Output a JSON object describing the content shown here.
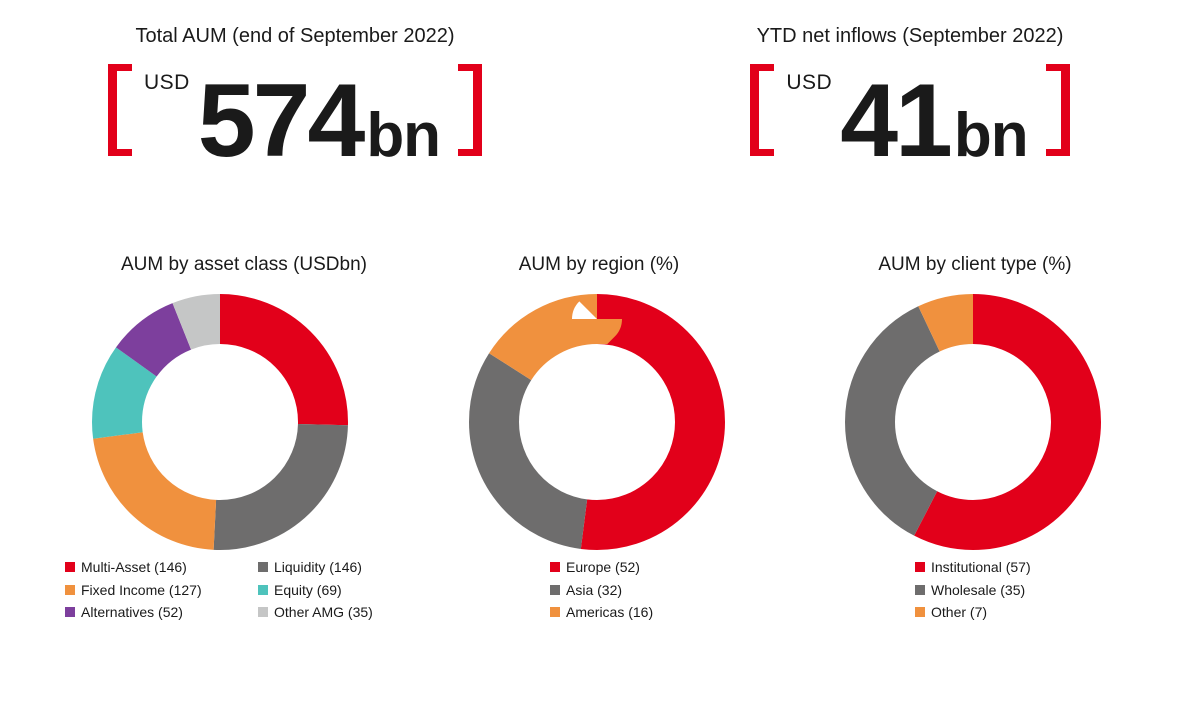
{
  "accent_color": "#e2001a",
  "stats": [
    {
      "title": "Total AUM (end of September 2022)",
      "currency": "USD",
      "value": "574",
      "unit": "bn"
    },
    {
      "title": "YTD net inflows (September 2022)",
      "currency": "USD",
      "value": "41",
      "unit": "bn"
    }
  ],
  "chart_data": [
    {
      "type": "donut",
      "title": "AUM by asset class (USDbn)",
      "value_unit": "USDbn",
      "start_angle_deg": 0,
      "direction": "clockwise",
      "legend_position": "bottom",
      "legend_columns": 2,
      "segments": [
        {
          "label": "Multi-Asset",
          "value": 146,
          "color": "#e2001a"
        },
        {
          "label": "Liquidity",
          "value": 146,
          "color": "#6e6d6d"
        },
        {
          "label": "Fixed Income",
          "value": 127,
          "color": "#f0913e"
        },
        {
          "label": "Equity",
          "value": 69,
          "color": "#4ec3bc"
        },
        {
          "label": "Alternatives",
          "value": 52,
          "color": "#7d3f9d"
        },
        {
          "label": "Other AMG",
          "value": 35,
          "color": "#c5c6c6"
        }
      ]
    },
    {
      "type": "donut",
      "title": "AUM by region (%)",
      "value_unit": "%",
      "start_angle_deg": 0,
      "direction": "clockwise",
      "legend_position": "bottom",
      "legend_columns": 1,
      "segments": [
        {
          "label": "Europe",
          "value": 52,
          "color": "#e2001a"
        },
        {
          "label": "Asia",
          "value": 32,
          "color": "#6e6d6d"
        },
        {
          "label": "Americas",
          "value": 16,
          "color": "#f0913e"
        }
      ]
    },
    {
      "type": "donut",
      "title": "AUM by client type (%)",
      "value_unit": "%",
      "start_angle_deg": 0,
      "direction": "clockwise",
      "legend_position": "bottom",
      "legend_columns": 1,
      "segments": [
        {
          "label": "Institutional",
          "value": 57,
          "color": "#e2001a"
        },
        {
          "label": "Wholesale",
          "value": 35,
          "color": "#6e6d6d"
        },
        {
          "label": "Other",
          "value": 7,
          "color": "#f0913e"
        }
      ]
    }
  ]
}
